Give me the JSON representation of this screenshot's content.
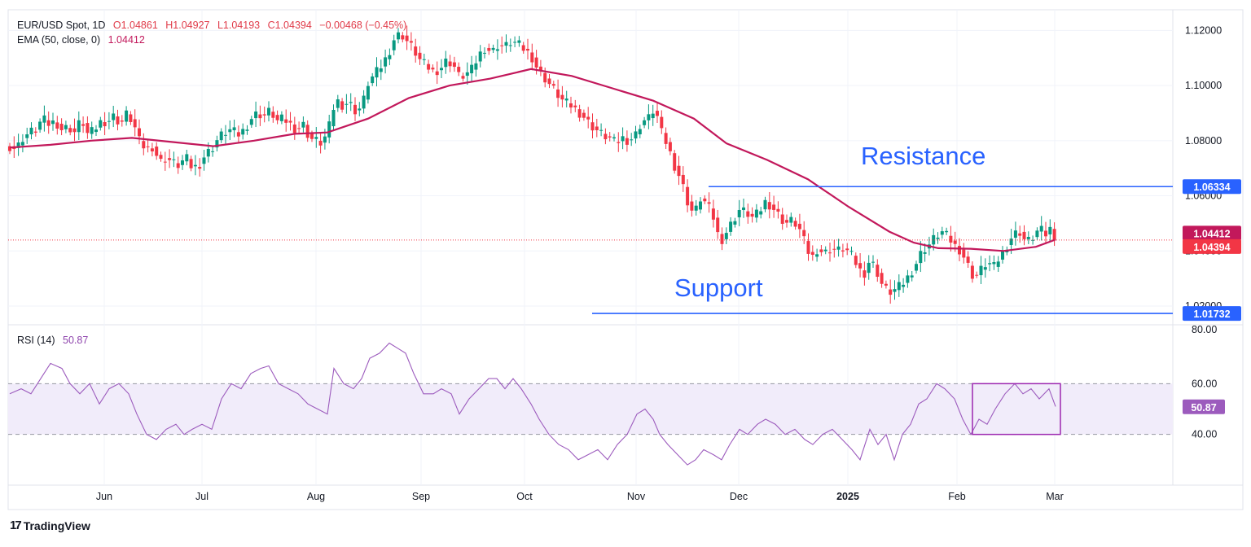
{
  "header": {
    "symbol": "EUR/USD Spot, 1D",
    "open": "O1.04861",
    "high": "H1.04927",
    "low": "L1.04193",
    "close": "C1.04394",
    "change": "−0.00468 (−0.45%)",
    "ema_label": "EMA (50, close, 0)",
    "ema_value": "1.04412"
  },
  "rsi_header": {
    "label": "RSI (14)",
    "value": "50.87"
  },
  "annotations": {
    "resistance": "Resistance",
    "support": "Support"
  },
  "branding": {
    "logo_mark": "17",
    "name": "TradingView"
  },
  "colors": {
    "up": "#089981",
    "down": "#f23645",
    "ema": "#c2185b",
    "rsi": "#9c5bbd",
    "level": "#2962ff",
    "band": "#f1ecfa"
  },
  "chart_data": [
    {
      "type": "candlestick",
      "title": "EUR/USD Spot, 1D",
      "x_labels": [
        "Jun",
        "Jul",
        "Aug",
        "Sep",
        "Oct",
        "Nov",
        "Dec",
        "2025",
        "Feb",
        "Mar"
      ],
      "y_ticks": [
        "1.12000",
        "1.10000",
        "1.08000",
        "1.06000",
        "1.04000",
        "1.02000"
      ],
      "ylim": [
        1.0135,
        1.1275
      ],
      "grid": true,
      "price_points": [
        [
          0,
          1.078
        ],
        [
          8,
          1.077
        ],
        [
          16,
          1.081
        ],
        [
          24,
          1.083
        ],
        [
          32,
          1.084
        ],
        [
          40,
          1.088
        ],
        [
          48,
          1.086
        ],
        [
          56,
          1.087
        ],
        [
          64,
          1.084
        ],
        [
          72,
          1.085
        ],
        [
          80,
          1.083
        ],
        [
          88,
          1.088
        ],
        [
          96,
          1.082
        ],
        [
          104,
          1.084
        ],
        [
          112,
          1.087
        ],
        [
          120,
          1.087
        ],
        [
          128,
          1.089
        ],
        [
          136,
          1.086
        ],
        [
          144,
          1.09
        ],
        [
          152,
          1.086
        ],
        [
          160,
          1.079
        ],
        [
          168,
          1.077
        ],
        [
          176,
          1.078
        ],
        [
          184,
          1.072
        ],
        [
          192,
          1.074
        ],
        [
          200,
          1.072
        ],
        [
          208,
          1.071
        ],
        [
          216,
          1.074
        ],
        [
          224,
          1.07
        ],
        [
          232,
          1.071
        ],
        [
          240,
          1.075
        ],
        [
          248,
          1.077
        ],
        [
          256,
          1.081
        ],
        [
          264,
          1.083
        ],
        [
          272,
          1.084
        ],
        [
          280,
          1.082
        ],
        [
          288,
          1.084
        ],
        [
          296,
          1.088
        ],
        [
          304,
          1.09
        ],
        [
          312,
          1.089
        ],
        [
          320,
          1.091
        ],
        [
          328,
          1.087
        ],
        [
          336,
          1.088
        ],
        [
          344,
          1.086
        ],
        [
          352,
          1.084
        ],
        [
          360,
          1.086
        ],
        [
          368,
          1.081
        ],
        [
          376,
          1.08
        ],
        [
          384,
          1.079
        ],
        [
          392,
          1.085
        ],
        [
          400,
          1.095
        ],
        [
          408,
          1.093
        ],
        [
          416,
          1.094
        ],
        [
          424,
          1.091
        ],
        [
          432,
          1.092
        ],
        [
          440,
          1.101
        ],
        [
          448,
          1.104
        ],
        [
          456,
          1.107
        ],
        [
          464,
          1.111
        ],
        [
          472,
          1.117
        ],
        [
          480,
          1.119
        ],
        [
          488,
          1.116
        ],
        [
          496,
          1.113
        ],
        [
          504,
          1.109
        ],
        [
          512,
          1.107
        ],
        [
          520,
          1.105
        ],
        [
          528,
          1.106
        ],
        [
          536,
          1.109
        ],
        [
          544,
          1.108
        ],
        [
          552,
          1.103
        ],
        [
          560,
          1.104
        ],
        [
          568,
          1.106
        ],
        [
          576,
          1.111
        ],
        [
          584,
          1.114
        ],
        [
          592,
          1.112
        ],
        [
          600,
          1.115
        ],
        [
          608,
          1.114
        ],
        [
          616,
          1.116
        ],
        [
          624,
          1.115
        ],
        [
          632,
          1.113
        ],
        [
          640,
          1.111
        ],
        [
          648,
          1.106
        ],
        [
          656,
          1.103
        ],
        [
          664,
          1.1
        ],
        [
          672,
          1.097
        ],
        [
          680,
          1.094
        ],
        [
          688,
          1.093
        ],
        [
          696,
          1.091
        ],
        [
          704,
          1.089
        ],
        [
          712,
          1.086
        ],
        [
          720,
          1.084
        ],
        [
          728,
          1.082
        ],
        [
          736,
          1.081
        ],
        [
          744,
          1.079
        ],
        [
          752,
          1.081
        ],
        [
          760,
          1.08
        ],
        [
          768,
          1.082
        ],
        [
          776,
          1.087
        ],
        [
          784,
          1.088
        ],
        [
          792,
          1.092
        ],
        [
          800,
          1.083
        ],
        [
          808,
          1.078
        ],
        [
          816,
          1.071
        ],
        [
          824,
          1.066
        ],
        [
          832,
          1.058
        ],
        [
          840,
          1.053
        ],
        [
          848,
          1.059
        ],
        [
          856,
          1.057
        ],
        [
          864,
          1.052
        ],
        [
          872,
          1.043
        ],
        [
          880,
          1.047
        ],
        [
          888,
          1.051
        ],
        [
          896,
          1.055
        ],
        [
          904,
          1.054
        ],
        [
          912,
          1.052
        ],
        [
          920,
          1.054
        ],
        [
          928,
          1.058
        ],
        [
          936,
          1.056
        ],
        [
          944,
          1.053
        ],
        [
          952,
          1.05
        ],
        [
          960,
          1.051
        ],
        [
          968,
          1.049
        ],
        [
          976,
          1.043
        ],
        [
          984,
          1.037
        ],
        [
          992,
          1.041
        ],
        [
          1000,
          1.039
        ],
        [
          1008,
          1.041
        ],
        [
          1016,
          1.04
        ],
        [
          1024,
          1.041
        ],
        [
          1032,
          1.039
        ],
        [
          1040,
          1.035
        ],
        [
          1048,
          1.031
        ],
        [
          1056,
          1.037
        ],
        [
          1064,
          1.033
        ],
        [
          1072,
          1.027
        ],
        [
          1080,
          1.025
        ],
        [
          1088,
          1.026
        ],
        [
          1096,
          1.028
        ],
        [
          1104,
          1.031
        ],
        [
          1112,
          1.035
        ],
        [
          1120,
          1.04
        ],
        [
          1128,
          1.042
        ],
        [
          1136,
          1.045
        ],
        [
          1144,
          1.047
        ],
        [
          1152,
          1.045
        ],
        [
          1160,
          1.042
        ],
        [
          1168,
          1.04
        ],
        [
          1176,
          1.035
        ],
        [
          1184,
          1.03
        ],
        [
          1192,
          1.033
        ],
        [
          1200,
          1.036
        ],
        [
          1208,
          1.034
        ],
        [
          1216,
          1.038
        ],
        [
          1224,
          1.042
        ],
        [
          1232,
          1.046
        ],
        [
          1240,
          1.047
        ],
        [
          1248,
          1.043
        ],
        [
          1256,
          1.045
        ],
        [
          1264,
          1.048
        ],
        [
          1272,
          1.046
        ],
        [
          1280,
          1.049
        ],
        [
          1284,
          1.044
        ]
      ],
      "ema_points": [
        [
          0,
          1.0775
        ],
        [
          50,
          1.0785
        ],
        [
          100,
          1.08
        ],
        [
          150,
          1.081
        ],
        [
          200,
          1.0795
        ],
        [
          250,
          1.078
        ],
        [
          300,
          1.08
        ],
        [
          350,
          1.0825
        ],
        [
          390,
          1.083
        ],
        [
          440,
          1.088
        ],
        [
          490,
          1.0955
        ],
        [
          540,
          1.1
        ],
        [
          590,
          1.1025
        ],
        [
          640,
          1.106
        ],
        [
          690,
          1.1035
        ],
        [
          740,
          1.099
        ],
        [
          790,
          1.0945
        ],
        [
          840,
          1.088
        ],
        [
          880,
          1.079
        ],
        [
          930,
          1.073
        ],
        [
          980,
          1.066
        ],
        [
          1030,
          1.056
        ],
        [
          1080,
          1.047
        ],
        [
          1110,
          1.043
        ],
        [
          1140,
          1.041
        ],
        [
          1180,
          1.0408
        ],
        [
          1220,
          1.04
        ],
        [
          1260,
          1.0415
        ],
        [
          1284,
          1.0441
        ]
      ],
      "levels": [
        {
          "name": "Resistance",
          "value": 1.06334,
          "label": "1.06334",
          "x_start": 870
        },
        {
          "name": "Support",
          "value": 1.01732,
          "label": "1.01732",
          "x_start": 727
        }
      ],
      "last_price": {
        "value": 1.04394,
        "label": "1.04394"
      },
      "ema_last": {
        "value": 1.04412,
        "label": "1.04412"
      }
    },
    {
      "type": "line",
      "title": "RSI (14)",
      "y_ticks": [
        "80.00",
        "60.00",
        "40.00"
      ],
      "ylim": [
        20,
        80
      ],
      "band": [
        40,
        60
      ],
      "last": {
        "value": 50.87,
        "label": "50.87"
      },
      "highlight_box": {
        "x_from": 1194,
        "x_to": 1302,
        "y_from": 40,
        "y_to": 60
      },
      "rsi_points": [
        [
          0,
          56
        ],
        [
          14,
          58
        ],
        [
          26,
          56
        ],
        [
          38,
          62
        ],
        [
          50,
          68
        ],
        [
          64,
          66
        ],
        [
          74,
          60
        ],
        [
          86,
          56
        ],
        [
          98,
          60
        ],
        [
          110,
          52
        ],
        [
          122,
          58
        ],
        [
          134,
          60
        ],
        [
          146,
          56
        ],
        [
          156,
          48
        ],
        [
          168,
          40
        ],
        [
          180,
          38
        ],
        [
          192,
          42
        ],
        [
          204,
          44
        ],
        [
          214,
          40
        ],
        [
          224,
          42
        ],
        [
          236,
          44
        ],
        [
          248,
          42
        ],
        [
          260,
          54
        ],
        [
          272,
          60
        ],
        [
          284,
          58
        ],
        [
          296,
          64
        ],
        [
          308,
          66
        ],
        [
          318,
          67
        ],
        [
          330,
          60
        ],
        [
          342,
          58
        ],
        [
          354,
          56
        ],
        [
          366,
          52
        ],
        [
          378,
          50
        ],
        [
          390,
          48
        ],
        [
          398,
          66
        ],
        [
          410,
          60
        ],
        [
          422,
          58
        ],
        [
          432,
          62
        ],
        [
          442,
          70
        ],
        [
          454,
          72
        ],
        [
          466,
          76
        ],
        [
          476,
          74
        ],
        [
          486,
          72
        ],
        [
          496,
          64
        ],
        [
          508,
          56
        ],
        [
          520,
          56
        ],
        [
          530,
          58
        ],
        [
          542,
          56
        ],
        [
          552,
          48
        ],
        [
          564,
          54
        ],
        [
          576,
          58
        ],
        [
          588,
          62
        ],
        [
          598,
          62
        ],
        [
          608,
          58
        ],
        [
          618,
          62
        ],
        [
          628,
          58
        ],
        [
          640,
          52
        ],
        [
          650,
          46
        ],
        [
          662,
          40
        ],
        [
          674,
          36
        ],
        [
          686,
          34
        ],
        [
          698,
          30
        ],
        [
          710,
          32
        ],
        [
          722,
          34
        ],
        [
          734,
          30
        ],
        [
          746,
          36
        ],
        [
          758,
          40
        ],
        [
          770,
          48
        ],
        [
          780,
          50
        ],
        [
          790,
          46
        ],
        [
          798,
          40
        ],
        [
          808,
          36
        ],
        [
          820,
          32
        ],
        [
          832,
          28
        ],
        [
          842,
          30
        ],
        [
          852,
          34
        ],
        [
          864,
          32
        ],
        [
          874,
          30
        ],
        [
          884,
          36
        ],
        [
          896,
          42
        ],
        [
          906,
          40
        ],
        [
          918,
          44
        ],
        [
          928,
          46
        ],
        [
          940,
          44
        ],
        [
          952,
          40
        ],
        [
          964,
          42
        ],
        [
          976,
          38
        ],
        [
          986,
          36
        ],
        [
          998,
          40
        ],
        [
          1010,
          42
        ],
        [
          1022,
          38
        ],
        [
          1034,
          34
        ],
        [
          1044,
          30
        ],
        [
          1056,
          42
        ],
        [
          1066,
          36
        ],
        [
          1076,
          40
        ],
        [
          1086,
          30
        ],
        [
          1096,
          40
        ],
        [
          1106,
          44
        ],
        [
          1116,
          52
        ],
        [
          1126,
          54
        ],
        [
          1138,
          60
        ],
        [
          1148,
          58
        ],
        [
          1160,
          54
        ],
        [
          1170,
          46
        ],
        [
          1180,
          40
        ],
        [
          1190,
          46
        ],
        [
          1200,
          44
        ],
        [
          1210,
          50
        ],
        [
          1222,
          56
        ],
        [
          1234,
          60
        ],
        [
          1244,
          56
        ],
        [
          1254,
          58
        ],
        [
          1264,
          54
        ],
        [
          1276,
          58
        ],
        [
          1284,
          51
        ]
      ]
    }
  ]
}
